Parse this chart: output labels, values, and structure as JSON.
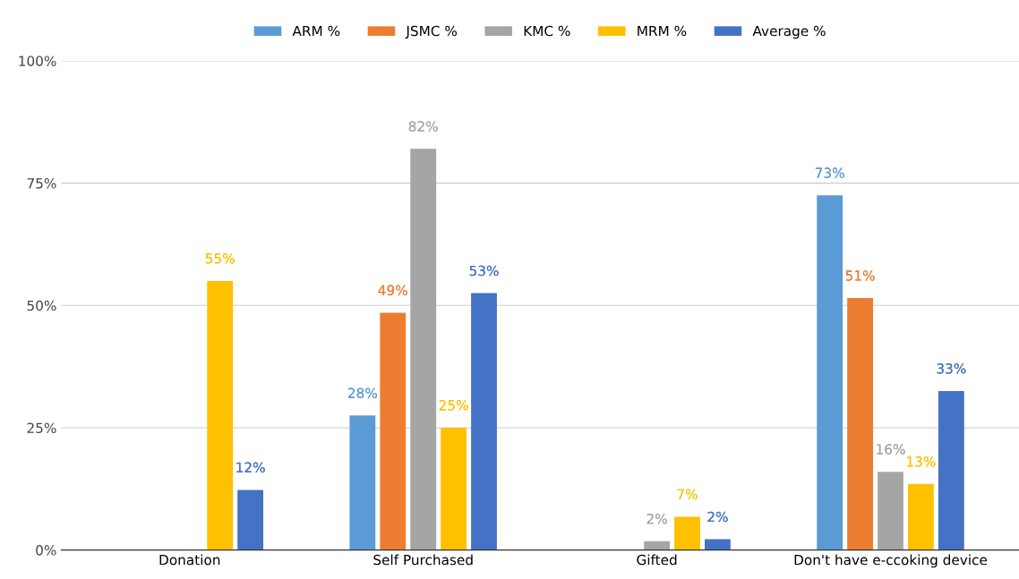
{
  "chart_data": {
    "type": "bar",
    "categories": [
      "Donation",
      "Self Purchased",
      "Gifted",
      "Don't have e-ccoking device"
    ],
    "series": [
      {
        "name": "ARM %",
        "color": "#5b9bd5",
        "values": [
          null,
          27.5,
          null,
          72.5
        ],
        "value_labels": [
          null,
          "28%",
          null,
          "73%"
        ]
      },
      {
        "name": "JSMC %",
        "color": "#ed7d31",
        "values": [
          null,
          48.5,
          null,
          51.5
        ],
        "value_labels": [
          null,
          "49%",
          null,
          "51%"
        ]
      },
      {
        "name": "KMC %",
        "color": "#a5a5a5",
        "values": [
          null,
          82,
          1.8,
          16
        ],
        "value_labels": [
          null,
          "82%",
          "2%",
          "16%"
        ]
      },
      {
        "name": "MRM %",
        "color": "#ffc000",
        "values": [
          55,
          25,
          6.8,
          13.5
        ],
        "value_labels": [
          "55%",
          "25%",
          "7%",
          "13%"
        ]
      },
      {
        "name": "Average %",
        "color": "#4472c4",
        "values": [
          12.3,
          52.5,
          2.2,
          32.5
        ],
        "value_labels": [
          "12%",
          "53%",
          "2%",
          "33%"
        ]
      }
    ],
    "ylim": [
      0,
      100
    ],
    "yticks": [
      {
        "value": 0,
        "label": "0%"
      },
      {
        "value": 25,
        "label": "25%"
      },
      {
        "value": 50,
        "label": "50%"
      },
      {
        "value": 75,
        "label": "75%"
      },
      {
        "value": 100,
        "label": "100%"
      }
    ],
    "grid": "y",
    "legend": "top"
  }
}
